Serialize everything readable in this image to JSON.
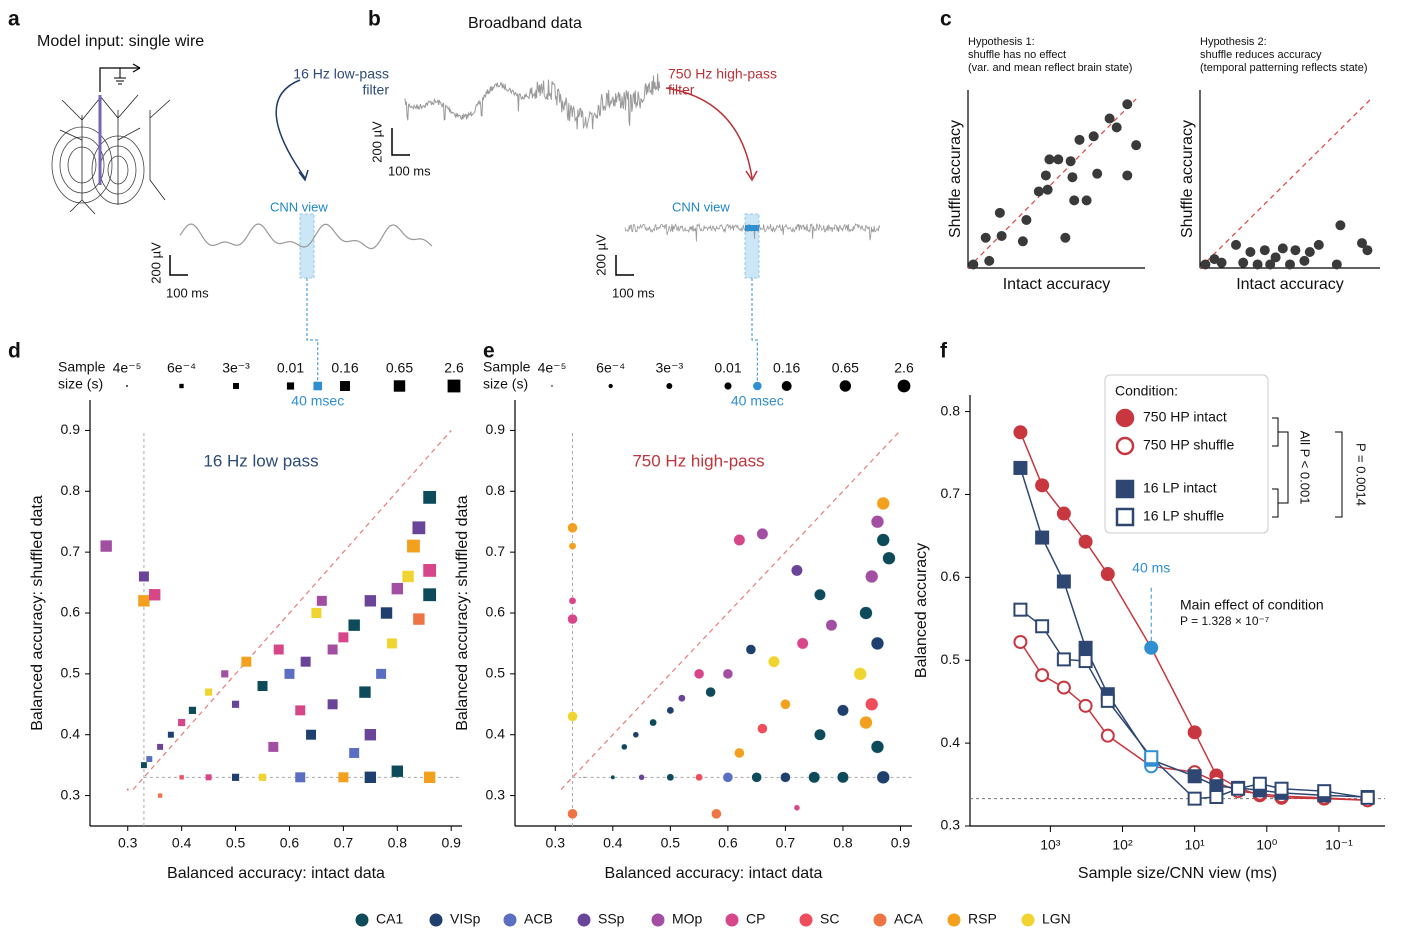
{
  "panel_labels": [
    "a",
    "b",
    "c",
    "d",
    "e",
    "f"
  ],
  "panel_a": {
    "title": "Model input: single wire"
  },
  "panel_b": {
    "title": "Broadband data",
    "lowpass_label": [
      "16 Hz low-pass",
      "filter"
    ],
    "highpass_label": [
      "750 Hz high-pass",
      "filter"
    ],
    "broadband_scale": {
      "voltage": "200 µV",
      "time": "100 ms"
    },
    "lowpass_view": {
      "label": "CNN view",
      "voltage": "200 µV",
      "time": "100 ms"
    },
    "highpass_view": {
      "label": "CNN view",
      "voltage": "200 µV",
      "time": "100 ms"
    }
  },
  "regions": [
    {
      "name": "CA1",
      "color": "#0d4a5a"
    },
    {
      "name": "VISp",
      "color": "#1f3f6e"
    },
    {
      "name": "ACB",
      "color": "#5b6fc2"
    },
    {
      "name": "SSp",
      "color": "#6a4499"
    },
    {
      "name": "MOp",
      "color": "#a24fa3"
    },
    {
      "name": "CP",
      "color": "#d8468a"
    },
    {
      "name": "SC",
      "color": "#ee4e5c"
    },
    {
      "name": "ACA",
      "color": "#f07343"
    },
    {
      "name": "RSP",
      "color": "#f3a01e"
    },
    {
      "name": "LGN",
      "color": "#f0d531"
    }
  ],
  "chart_data": [
    {
      "type": "scatter",
      "title": [
        "Hypothesis 1:",
        "shuffle has no effect",
        "(var. and mean reflect brain state)"
      ],
      "x_label": "Intact accuracy",
      "y_label": "Shuffle accuracy",
      "xlim": [
        0,
        1
      ],
      "ylim": [
        0,
        1
      ],
      "diagonal": true,
      "color": "#3a3a3a",
      "x": [
        0.03,
        0.12,
        0.1,
        0.19,
        0.18,
        0.31,
        0.33,
        0.4,
        0.44,
        0.46,
        0.51,
        0.55,
        0.58,
        0.6,
        0.63,
        0.67,
        0.71,
        0.73,
        0.8,
        0.84,
        0.9,
        0.95,
        0.9,
        0.59,
        0.45
      ],
      "y": [
        0.02,
        0.04,
        0.17,
        0.18,
        0.31,
        0.15,
        0.27,
        0.43,
        0.52,
        0.61,
        0.61,
        0.17,
        0.6,
        0.38,
        0.72,
        0.38,
        0.74,
        0.53,
        0.84,
        0.79,
        0.92,
        0.69,
        0.52,
        0.51,
        0.44
      ]
    },
    {
      "type": "scatter",
      "title": [
        "Hypothesis 2:",
        "shuffle reduces accuracy",
        "(temporal patterning reflects state)"
      ],
      "x_label": "Intact accuracy",
      "y_label": "Shuffle accuracy",
      "xlim": [
        0,
        1
      ],
      "ylim": [
        0,
        1
      ],
      "diagonal": true,
      "color": "#3a3a3a",
      "x": [
        0.03,
        0.08,
        0.12,
        0.2,
        0.24,
        0.28,
        0.32,
        0.36,
        0.39,
        0.42,
        0.46,
        0.5,
        0.53,
        0.58,
        0.61,
        0.66,
        0.76,
        0.78,
        0.9,
        0.93
      ],
      "y": [
        0.02,
        0.05,
        0.03,
        0.13,
        0.03,
        0.09,
        0.02,
        0.1,
        0.02,
        0.06,
        0.11,
        0.02,
        0.1,
        0.04,
        0.09,
        0.13,
        0.02,
        0.24,
        0.14,
        0.1
      ]
    },
    {
      "type": "scatter",
      "marker": "square",
      "title": "16 Hz low pass",
      "title_color": "#2d4a78",
      "x_label": "Balanced accuracy: intact data",
      "y_label": "Balanced accuracy: shuffled data",
      "xlim": [
        0.23,
        0.92
      ],
      "ylim": [
        0.25,
        0.95
      ],
      "xticks": [
        0.3,
        0.4,
        0.5,
        0.6,
        0.7,
        0.8,
        0.9
      ],
      "yticks": [
        0.3,
        0.4,
        0.5,
        0.6,
        0.7,
        0.8,
        0.9
      ],
      "diagonal": true,
      "chance": 0.33,
      "size_legend": {
        "title": [
          "Sample",
          "size (s)"
        ],
        "values": [
          {
            "value": 4e-05,
            "label": "4e⁻⁵"
          },
          {
            "value": 0.0006,
            "label": "6e⁻⁴"
          },
          {
            "value": 0.003,
            "label": "3e⁻³"
          },
          0.01,
          0.16,
          0.65,
          2.6
        ],
        "highlight": {
          "value": 0.04,
          "label": "40 msec"
        }
      },
      "x": [
        0.86,
        0.84,
        0.83,
        0.86,
        0.86,
        0.8,
        0.78,
        0.82,
        0.75,
        0.72,
        0.7,
        0.68,
        0.65,
        0.63,
        0.6,
        0.58,
        0.55,
        0.52,
        0.5,
        0.48,
        0.45,
        0.42,
        0.4,
        0.38,
        0.36,
        0.34,
        0.33,
        0.33,
        0.33,
        0.35,
        0.26,
        0.8,
        0.86,
        0.75,
        0.7,
        0.62,
        0.55,
        0.5,
        0.45,
        0.4,
        0.72,
        0.75,
        0.64,
        0.57,
        0.77,
        0.74,
        0.68,
        0.62,
        0.79,
        0.84,
        0.3,
        0.36,
        0.66
      ],
      "y": [
        0.79,
        0.74,
        0.71,
        0.67,
        0.63,
        0.64,
        0.6,
        0.66,
        0.62,
        0.58,
        0.56,
        0.54,
        0.6,
        0.52,
        0.5,
        0.54,
        0.48,
        0.52,
        0.45,
        0.5,
        0.47,
        0.44,
        0.42,
        0.4,
        0.38,
        0.36,
        0.35,
        0.62,
        0.66,
        0.63,
        0.71,
        0.34,
        0.33,
        0.33,
        0.33,
        0.33,
        0.33,
        0.33,
        0.33,
        0.33,
        0.37,
        0.4,
        0.4,
        0.38,
        0.5,
        0.47,
        0.45,
        0.44,
        0.55,
        0.59,
        0.31,
        0.3,
        0.62
      ],
      "region": [
        "CA1",
        "SSp",
        "RSP",
        "CP",
        "CA1",
        "MOp",
        "VISp",
        "LGN",
        "SSp",
        "CA1",
        "CP",
        "MOp",
        "LGN",
        "SSp",
        "ACB",
        "CP",
        "CA1",
        "RSP",
        "SSp",
        "MOp",
        "LGN",
        "CA1",
        "CP",
        "VISp",
        "SSp",
        "ACB",
        "CA1",
        "RSP",
        "SSp",
        "CP",
        "MOp",
        "CA1",
        "RSP",
        "VISp",
        "RSP",
        "ACB",
        "LGN",
        "VISp",
        "CP",
        "SC",
        "ACB",
        "SSp",
        "VISp",
        "MOp",
        "ACB",
        "CA1",
        "SSp",
        "CP",
        "LGN",
        "ACA",
        "SC",
        "ACA",
        "MOp"
      ],
      "size": [
        2.6,
        2.6,
        2.6,
        2.6,
        2.6,
        0.65,
        0.65,
        0.65,
        0.65,
        0.65,
        0.16,
        0.16,
        0.16,
        0.16,
        0.16,
        0.16,
        0.16,
        0.16,
        0.01,
        0.01,
        0.01,
        0.01,
        0.01,
        0.003,
        0.003,
        0.003,
        0.003,
        0.65,
        0.16,
        0.65,
        0.65,
        0.65,
        0.65,
        0.65,
        0.16,
        0.16,
        0.01,
        0.01,
        0.003,
        0.0006,
        0.16,
        0.65,
        0.16,
        0.16,
        0.16,
        0.65,
        0.16,
        0.16,
        0.16,
        0.65,
        4e-05,
        0.0006,
        0.16
      ]
    },
    {
      "type": "scatter",
      "marker": "circle",
      "title": "750 Hz high-pass",
      "title_color": "#c0343b",
      "x_label": "Balanced accuracy: intact data",
      "y_label": "Balanced accuracy: shuffled data",
      "xlim": [
        0.23,
        0.92
      ],
      "ylim": [
        0.25,
        0.95
      ],
      "xticks": [
        0.3,
        0.4,
        0.5,
        0.6,
        0.7,
        0.8,
        0.9
      ],
      "yticks": [
        0.3,
        0.4,
        0.5,
        0.6,
        0.7,
        0.8,
        0.9
      ],
      "diagonal": true,
      "chance": 0.33,
      "size_legend": {
        "title": [
          "Sample",
          "size (s)"
        ],
        "values": [
          {
            "value": 4e-05,
            "label": "4e⁻⁵"
          },
          {
            "value": 0.0006,
            "label": "6e⁻⁴"
          },
          {
            "value": 0.003,
            "label": "3e⁻³"
          },
          0.01,
          0.16,
          0.65,
          2.6
        ],
        "highlight": {
          "value": 0.04,
          "label": "40 msec"
        }
      },
      "x": [
        0.87,
        0.87,
        0.88,
        0.86,
        0.85,
        0.84,
        0.86,
        0.83,
        0.85,
        0.84,
        0.86,
        0.87,
        0.8,
        0.75,
        0.7,
        0.65,
        0.6,
        0.55,
        0.5,
        0.45,
        0.4,
        0.35,
        0.62,
        0.66,
        0.72,
        0.76,
        0.78,
        0.73,
        0.68,
        0.64,
        0.6,
        0.57,
        0.55,
        0.52,
        0.5,
        0.47,
        0.44,
        0.42,
        0.7,
        0.66,
        0.62,
        0.76,
        0.8,
        0.33,
        0.33,
        0.33,
        0.33,
        0.33,
        0.33,
        0.58,
        0.72
      ],
      "y": [
        0.78,
        0.72,
        0.69,
        0.75,
        0.66,
        0.6,
        0.55,
        0.5,
        0.45,
        0.42,
        0.38,
        0.33,
        0.33,
        0.33,
        0.33,
        0.33,
        0.33,
        0.33,
        0.33,
        0.33,
        0.33,
        0.33,
        0.72,
        0.73,
        0.67,
        0.63,
        0.58,
        0.55,
        0.52,
        0.54,
        0.5,
        0.47,
        0.5,
        0.46,
        0.44,
        0.42,
        0.4,
        0.38,
        0.45,
        0.41,
        0.37,
        0.4,
        0.44,
        0.74,
        0.71,
        0.62,
        0.59,
        0.43,
        0.27,
        0.27,
        0.28
      ],
      "region": [
        "RSP",
        "CA1",
        "CA1",
        "MOp",
        "MOp",
        "CA1",
        "VISp",
        "LGN",
        "SC",
        "RSP",
        "CA1",
        "VISp",
        "CA1",
        "CA1",
        "VISp",
        "CA1",
        "ACB",
        "SC",
        "CA1",
        "SSp",
        "CA1",
        "CA1",
        "CP",
        "MOp",
        "SSp",
        "CA1",
        "MOp",
        "CP",
        "LGN",
        "VISp",
        "MOp",
        "CA1",
        "CP",
        "SSp",
        "VISp",
        "CA1",
        "VISp",
        "CA1",
        "RSP",
        "SC",
        "RSP",
        "CA1",
        "VISp",
        "RSP",
        "RSP",
        "CP",
        "CP",
        "LGN",
        "ACA",
        "ACA",
        "CP"
      ],
      "size": [
        2.6,
        2.6,
        2.6,
        2.6,
        2.6,
        2.6,
        2.6,
        2.6,
        2.6,
        2.6,
        2.6,
        2.6,
        0.65,
        0.65,
        0.16,
        0.16,
        0.16,
        0.01,
        0.01,
        0.003,
        0.0006,
        4e-05,
        0.65,
        0.65,
        0.65,
        0.65,
        0.65,
        0.65,
        0.65,
        0.16,
        0.16,
        0.16,
        0.16,
        0.01,
        0.01,
        0.01,
        0.003,
        0.003,
        0.16,
        0.16,
        0.16,
        0.65,
        0.65,
        0.16,
        0.01,
        0.01,
        0.16,
        0.16,
        0.16,
        0.16,
        0.003
      ]
    },
    {
      "type": "line",
      "log_x": true,
      "x_label": "Sample size/CNN view (ms)",
      "y_label": "Balanced accuracy",
      "x": [
        2600,
        1300,
        650,
        325,
        160,
        40,
        10,
        5,
        2.5,
        1.25,
        0.625,
        0.16,
        0.04
      ],
      "xlim": [
        13000,
        0.023
      ],
      "xticks": [
        {
          "value": 1000,
          "label": "10³"
        },
        {
          "value": 100,
          "label": "10²"
        },
        {
          "value": 10,
          "label": "10¹"
        },
        {
          "value": 1,
          "label": "10⁰"
        },
        {
          "value": 0.1,
          "label": "10⁻¹"
        }
      ],
      "ylim": [
        0.3,
        0.82
      ],
      "yticks": [
        0.3,
        0.4,
        0.5,
        0.6,
        0.7,
        0.8
      ],
      "chance": 0.333,
      "legend_title": "Condition:",
      "series": [
        {
          "name": "750 HP intact",
          "color": "#c8373f",
          "marker": "circle",
          "filled": true,
          "values": [
            0.775,
            0.711,
            0.677,
            0.643,
            0.604,
            0.515,
            0.413,
            0.361,
            0.346,
            0.337,
            0.334,
            0.333,
            0.331
          ]
        },
        {
          "name": "750 HP shuffle",
          "color": "#c8373f",
          "marker": "circle",
          "filled": false,
          "values": [
            0.522,
            0.482,
            0.467,
            0.445,
            0.409,
            0.372,
            0.365,
            0.353,
            0.342,
            0.339,
            0.336,
            0.334,
            0.331
          ]
        },
        {
          "name": "16 LP intact",
          "color": "#2e4672",
          "marker": "square",
          "filled": true,
          "values": [
            0.732,
            0.648,
            0.595,
            0.515,
            0.459,
            0.38,
            0.36,
            0.348,
            0.346,
            0.343,
            0.34,
            0.337,
            0.335
          ]
        },
        {
          "name": "16 LP shuffle",
          "color": "#2e4672",
          "marker": "square",
          "filled": false,
          "values": [
            0.561,
            0.541,
            0.501,
            0.499,
            0.451,
            0.383,
            0.333,
            0.335,
            0.345,
            0.351,
            0.345,
            0.342,
            0.334
          ]
        }
      ],
      "highlight": {
        "x": 40,
        "label": "40 ms",
        "color": "#2f8fd0"
      },
      "effect": [
        "Main effect of condition",
        "P = 1.328 × 10⁻⁷"
      ],
      "brackets": [
        "All P < 0.001",
        "P = 0.0014"
      ]
    }
  ]
}
